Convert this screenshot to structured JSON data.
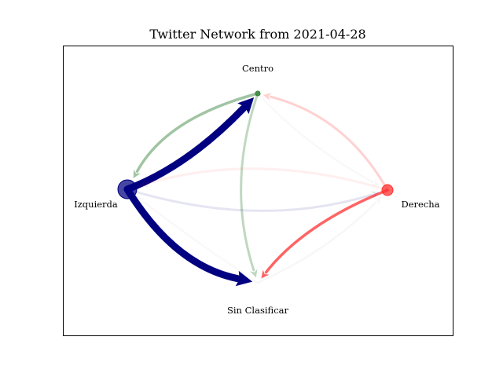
{
  "figure": {
    "title": "Twitter Network from 2021-04-28"
  },
  "colors": {
    "Izquierda": "#000080",
    "Centro": "#2e7d32",
    "Derecha": "#ff3030",
    "Sin Clasificar": "#888888"
  },
  "nodes": [
    {
      "id": "Centro",
      "label": "Centro",
      "color": "#2e7d32"
    },
    {
      "id": "Izquierda",
      "label": "Izquierda",
      "color": "#000080"
    },
    {
      "id": "Derecha",
      "label": "Derecha",
      "color": "#ff3030"
    },
    {
      "id": "Sin Clasificar",
      "label": "Sin Clasificar",
      "color": "#cccccc"
    }
  ],
  "edges": [
    {
      "source": "Izquierda",
      "target": "Centro",
      "color": "#000080",
      "opacity": 1.0
    },
    {
      "source": "Izquierda",
      "target": "Sin Clasificar",
      "color": "#000080",
      "opacity": 1.0
    },
    {
      "source": "Centro",
      "target": "Izquierda",
      "color": "#2e7d32",
      "opacity": 0.45
    },
    {
      "source": "Centro",
      "target": "Sin Clasificar",
      "color": "#2e7d32",
      "opacity": 0.3
    },
    {
      "source": "Derecha",
      "target": "Sin Clasificar",
      "color": "#ff3030",
      "opacity": 0.75
    },
    {
      "source": "Derecha",
      "target": "Centro",
      "color": "#ff3030",
      "opacity": 0.22
    },
    {
      "source": "Derecha",
      "target": "Izquierda",
      "color": "#ff3030",
      "opacity": 0.08
    },
    {
      "source": "Izquierda",
      "target": "Derecha",
      "color": "#000080",
      "opacity": 0.1
    },
    {
      "source": "Sin Clasificar",
      "target": "Derecha",
      "color": "#cccccc",
      "opacity": 0.15
    },
    {
      "source": "Centro",
      "target": "Derecha",
      "color": "#cccccc",
      "opacity": 0.12
    },
    {
      "source": "Sin Clasificar",
      "target": "Izquierda",
      "color": "#cccccc",
      "opacity": 0.12
    }
  ]
}
